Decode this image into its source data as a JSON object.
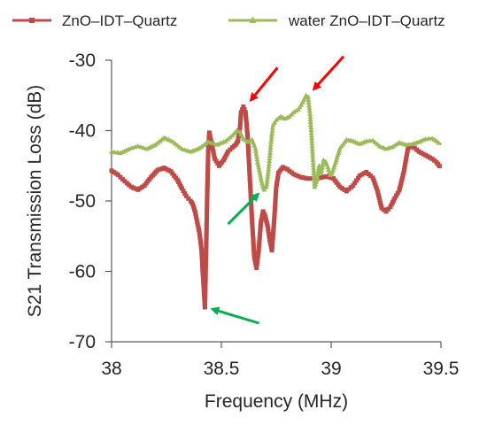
{
  "colors": {
    "series1": "#be4b48",
    "series2": "#9bbb59",
    "red_arrow": "#ff0000",
    "green_arrow": "#00b050",
    "axis": "#595959",
    "text": "#262626"
  },
  "chart_data": {
    "type": "line",
    "title": "",
    "xlabel": "Frequency (MHz)",
    "ylabel": "S21 Transmission Loss (dB)",
    "xlim": [
      38,
      39.5
    ],
    "ylim": [
      -70,
      -30
    ],
    "x_ticks": [
      38,
      38.5,
      39,
      39.5
    ],
    "x_tick_labels": [
      "38",
      "38.5",
      "39",
      "39.5"
    ],
    "y_ticks": [
      -70,
      -60,
      -50,
      -40,
      -30
    ],
    "y_tick_labels": [
      "-70",
      "-60",
      "-50",
      "-40",
      "-30"
    ],
    "grid": false,
    "legend_position": "top",
    "series": [
      {
        "name": "ZnO–IDT–Quartz",
        "color": "#be4b48",
        "marker": "square",
        "points": [
          [
            38.0,
            -45.7
          ],
          [
            38.03,
            -46.3
          ],
          [
            38.06,
            -47.2
          ],
          [
            38.09,
            -48.0
          ],
          [
            38.12,
            -48.4
          ],
          [
            38.15,
            -47.8
          ],
          [
            38.18,
            -46.6
          ],
          [
            38.21,
            -45.6
          ],
          [
            38.24,
            -45.3
          ],
          [
            38.27,
            -45.8
          ],
          [
            38.3,
            -47.0
          ],
          [
            38.32,
            -48.2
          ],
          [
            38.34,
            -49.3
          ],
          [
            38.36,
            -50.0
          ],
          [
            38.37,
            -50.5
          ],
          [
            38.38,
            -51.5
          ],
          [
            38.39,
            -53.0
          ],
          [
            38.4,
            -54.5
          ],
          [
            38.41,
            -57.0
          ],
          [
            38.415,
            -60.0
          ],
          [
            38.42,
            -62.5
          ],
          [
            38.425,
            -65.1
          ],
          [
            38.43,
            -58.0
          ],
          [
            38.435,
            -50.0
          ],
          [
            38.44,
            -43.0
          ],
          [
            38.445,
            -40.3
          ],
          [
            38.45,
            -41.0
          ],
          [
            38.46,
            -42.5
          ],
          [
            38.47,
            -44.0
          ],
          [
            38.49,
            -45.0
          ],
          [
            38.51,
            -44.2
          ],
          [
            38.53,
            -43.0
          ],
          [
            38.55,
            -42.4
          ],
          [
            38.565,
            -42.0
          ],
          [
            38.575,
            -41.5
          ],
          [
            38.585,
            -39.5
          ],
          [
            38.59,
            -37.4
          ],
          [
            38.6,
            -36.6
          ],
          [
            38.61,
            -37.4
          ],
          [
            38.62,
            -41.0
          ],
          [
            38.63,
            -47.0
          ],
          [
            38.64,
            -53.0
          ],
          [
            38.65,
            -58.0
          ],
          [
            38.66,
            -59.5
          ],
          [
            38.67,
            -57.0
          ],
          [
            38.68,
            -53.0
          ],
          [
            38.69,
            -51.5
          ],
          [
            38.7,
            -52.2
          ],
          [
            38.71,
            -53.5
          ],
          [
            38.72,
            -55.5
          ],
          [
            38.73,
            -57.0
          ],
          [
            38.74,
            -53.0
          ],
          [
            38.75,
            -48.0
          ],
          [
            38.76,
            -46.0
          ],
          [
            38.78,
            -45.2
          ],
          [
            38.8,
            -45.5
          ],
          [
            38.83,
            -46.2
          ],
          [
            38.86,
            -46.6
          ],
          [
            38.89,
            -46.8
          ],
          [
            38.92,
            -46.8
          ],
          [
            38.95,
            -46.7
          ],
          [
            38.98,
            -46.5
          ],
          [
            39.01,
            -46.8
          ],
          [
            39.04,
            -48.0
          ],
          [
            39.07,
            -48.6
          ],
          [
            39.1,
            -47.8
          ],
          [
            39.13,
            -46.4
          ],
          [
            39.16,
            -45.9
          ],
          [
            39.19,
            -46.7
          ],
          [
            39.21,
            -48.5
          ],
          [
            39.23,
            -51.0
          ],
          [
            39.25,
            -51.5
          ],
          [
            39.27,
            -50.8
          ],
          [
            39.29,
            -49.6
          ],
          [
            39.31,
            -48.5
          ],
          [
            39.33,
            -46.0
          ],
          [
            39.35,
            -42.5
          ],
          [
            39.37,
            -42.2
          ],
          [
            39.4,
            -43.0
          ],
          [
            39.43,
            -43.5
          ],
          [
            39.46,
            -44.0
          ],
          [
            39.48,
            -44.5
          ],
          [
            39.5,
            -45.3
          ]
        ]
      },
      {
        "name": "water ZnO–IDT–Quartz",
        "color": "#9bbb59",
        "marker": "triangle",
        "points": [
          [
            38.0,
            -43.0
          ],
          [
            38.04,
            -43.2
          ],
          [
            38.08,
            -42.6
          ],
          [
            38.12,
            -42.2
          ],
          [
            38.16,
            -42.6
          ],
          [
            38.2,
            -42.0
          ],
          [
            38.24,
            -41.0
          ],
          [
            38.28,
            -41.6
          ],
          [
            38.32,
            -42.6
          ],
          [
            38.36,
            -43.0
          ],
          [
            38.4,
            -42.5
          ],
          [
            38.44,
            -41.6
          ],
          [
            38.48,
            -42.0
          ],
          [
            38.52,
            -41.5
          ],
          [
            38.55,
            -40.7
          ],
          [
            38.57,
            -40.0
          ],
          [
            38.585,
            -40.2
          ],
          [
            38.6,
            -41.2
          ],
          [
            38.62,
            -41.6
          ],
          [
            38.64,
            -41.3
          ],
          [
            38.655,
            -42.5
          ],
          [
            38.665,
            -44.5
          ],
          [
            38.675,
            -46.0
          ],
          [
            38.685,
            -47.5
          ],
          [
            38.695,
            -48.4
          ],
          [
            38.705,
            -48.0
          ],
          [
            38.715,
            -45.5
          ],
          [
            38.725,
            -42.0
          ],
          [
            38.735,
            -39.2
          ],
          [
            38.75,
            -38.5
          ],
          [
            38.77,
            -38.0
          ],
          [
            38.79,
            -38.3
          ],
          [
            38.81,
            -38.0
          ],
          [
            38.83,
            -37.4
          ],
          [
            38.85,
            -37.0
          ],
          [
            38.87,
            -36.0
          ],
          [
            38.885,
            -35.0
          ],
          [
            38.895,
            -35.2
          ],
          [
            38.905,
            -38.0
          ],
          [
            38.915,
            -43.0
          ],
          [
            38.925,
            -48.0
          ],
          [
            38.935,
            -47.0
          ],
          [
            38.945,
            -45.0
          ],
          [
            38.955,
            -46.0
          ],
          [
            38.965,
            -44.2
          ],
          [
            38.975,
            -44.4
          ],
          [
            38.985,
            -45.2
          ],
          [
            38.995,
            -46.3
          ],
          [
            39.005,
            -46.0
          ],
          [
            39.02,
            -44.5
          ],
          [
            39.04,
            -42.5
          ],
          [
            39.07,
            -41.3
          ],
          [
            39.1,
            -41.5
          ],
          [
            39.13,
            -41.9
          ],
          [
            39.16,
            -41.5
          ],
          [
            39.19,
            -41.4
          ],
          [
            39.22,
            -42.2
          ],
          [
            39.25,
            -42.6
          ],
          [
            39.28,
            -42.3
          ],
          [
            39.31,
            -41.7
          ],
          [
            39.34,
            -42.0
          ],
          [
            39.37,
            -41.9
          ],
          [
            39.4,
            -41.6
          ],
          [
            39.43,
            -41.2
          ],
          [
            39.46,
            -41.1
          ],
          [
            39.48,
            -41.5
          ],
          [
            39.5,
            -42.0
          ]
        ]
      }
    ],
    "annotations": [
      {
        "type": "arrow",
        "color": "red",
        "target": [
          38.61,
          -36.6
        ]
      },
      {
        "type": "arrow",
        "color": "red",
        "target": [
          38.895,
          -35.0
        ]
      },
      {
        "type": "arrow",
        "color": "green",
        "target": [
          38.7,
          -48.0
        ]
      },
      {
        "type": "arrow",
        "color": "green",
        "target": [
          38.43,
          -65.1
        ]
      }
    ]
  }
}
